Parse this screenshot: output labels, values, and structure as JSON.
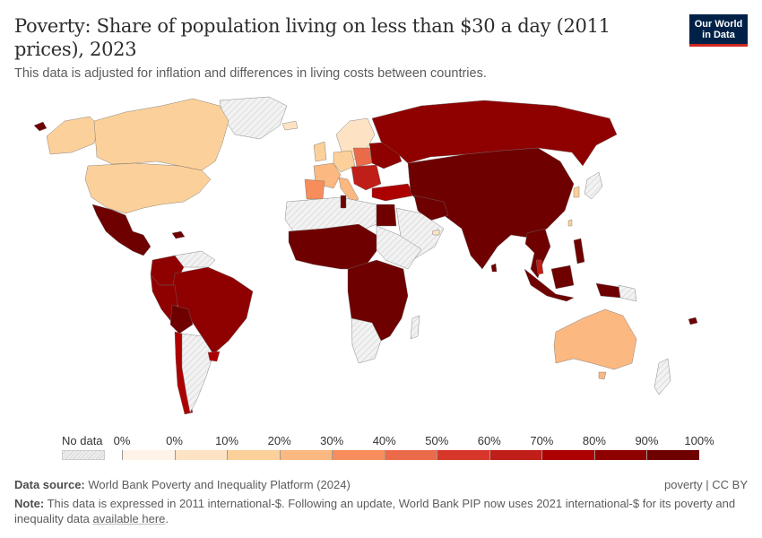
{
  "header": {
    "title": "Poverty: Share of population living on less than $30 a day (2011 prices), 2023",
    "subtitle": "This data is adjusted for inflation and differences in living costs between countries.",
    "logo_line1": "Our World",
    "logo_line2": "in Data"
  },
  "chart_data": {
    "type": "choropleth",
    "title": "Poverty: Share of population living on less than $30 a day (2011 prices), 2023",
    "subtitle": "This data is adjusted for inflation and differences in living costs between countries.",
    "year": 2023,
    "legend": {
      "no_data_label": "No data",
      "no_data_color": "#e8e8e8",
      "bins": [
        {
          "from": "0%",
          "to": "0%",
          "color": "#fef3e6"
        },
        {
          "from": "0%",
          "to": "10%",
          "color": "#fde3c3"
        },
        {
          "from": "10%",
          "to": "20%",
          "color": "#fcd09a"
        },
        {
          "from": "20%",
          "to": "30%",
          "color": "#fbb881"
        },
        {
          "from": "30%",
          "to": "40%",
          "color": "#f78d5a"
        },
        {
          "from": "40%",
          "to": "50%",
          "color": "#ea6a4a"
        },
        {
          "from": "50%",
          "to": "60%",
          "color": "#d7362a"
        },
        {
          "from": "60%",
          "to": "70%",
          "color": "#c01e18"
        },
        {
          "from": "70%",
          "to": "80%",
          "color": "#ad0000"
        },
        {
          "from": "80%",
          "to": "90%",
          "color": "#8f0000"
        },
        {
          "from": "90%",
          "to": "100%",
          "color": "#6f0000"
        }
      ],
      "tick_labels": [
        "0%",
        "0%",
        "10%",
        "20%",
        "30%",
        "40%",
        "50%",
        "60%",
        "70%",
        "80%",
        "90%",
        "100%"
      ]
    },
    "regions": [
      {
        "name": "Canada / USA",
        "bin": "10-20%"
      },
      {
        "name": "Greenland",
        "bin": "no data"
      },
      {
        "name": "Mexico & Central America",
        "bin": "90-100%"
      },
      {
        "name": "South America (Brazil, Colombia, Peru etc.)",
        "bin": "80-90%"
      },
      {
        "name": "Bolivia",
        "bin": "90-100%"
      },
      {
        "name": "Argentina",
        "bin": "no data"
      },
      {
        "name": "Chile",
        "bin": "70-80%"
      },
      {
        "name": "Uruguay",
        "bin": "70-80%"
      },
      {
        "name": "Western Europe",
        "bin": "10-30%"
      },
      {
        "name": "Scandinavia",
        "bin": "0-20%"
      },
      {
        "name": "Poland / Central Europe",
        "bin": "40-50%"
      },
      {
        "name": "Iberia",
        "bin": "30-40%"
      },
      {
        "name": "Eastern Europe / Balkans",
        "bin": "60-90%"
      },
      {
        "name": "Russia",
        "bin": "80-90%"
      },
      {
        "name": "Turkey",
        "bin": "70-80%"
      },
      {
        "name": "Central Asia / China / India",
        "bin": "90-100%"
      },
      {
        "name": "Japan",
        "bin": "no data"
      },
      {
        "name": "South Korea",
        "bin": "10-20%"
      },
      {
        "name": "Taiwan",
        "bin": "10-20%"
      },
      {
        "name": "Southeast Asia",
        "bin": "90-100%"
      },
      {
        "name": "Malaysia",
        "bin": "60-70%"
      },
      {
        "name": "Australia",
        "bin": "20-30%"
      },
      {
        "name": "North Africa (Egypt, Tunisia)",
        "bin": "90-100%"
      },
      {
        "name": "Sahara / Arabia",
        "bin": "no data"
      },
      {
        "name": "UAE",
        "bin": "0-10%"
      },
      {
        "name": "Sub-Saharan Africa",
        "bin": "90-100%"
      },
      {
        "name": "Southern Africa",
        "bin": "no data"
      }
    ]
  },
  "footer": {
    "source_label": "Data source:",
    "source_text": "World Bank Poverty and Inequality Platform (2024)",
    "right_text": "poverty | CC BY",
    "note_label": "Note:",
    "note_text": "This data is expressed in 2011 international-$. Following an update, World Bank PIP now uses 2021 international-$ for its poverty and inequality data",
    "note_link": "available here",
    "note_end": "."
  }
}
